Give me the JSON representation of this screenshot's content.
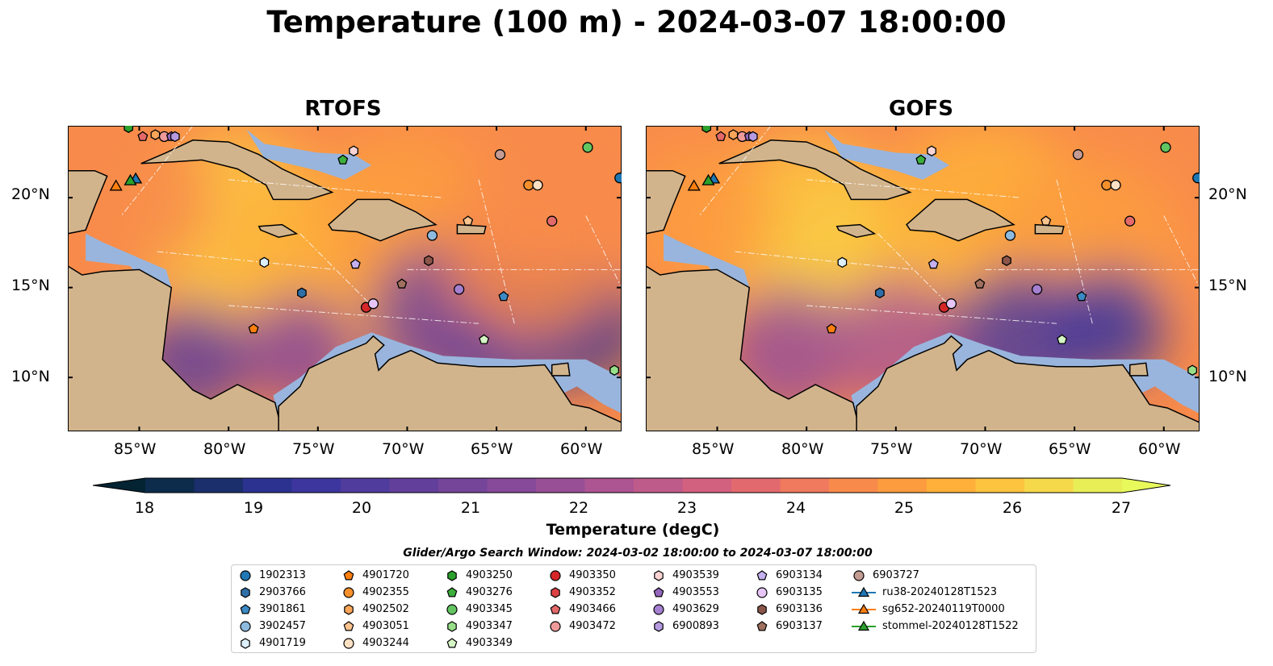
{
  "title": "Temperature (100 m) - 2024-03-07 18:00:00",
  "panels": [
    {
      "title": "RTOFS",
      "model": "rtofs"
    },
    {
      "title": "GOFS",
      "model": "gofs"
    }
  ],
  "axes": {
    "lon_ticks": [
      "85°W",
      "80°W",
      "75°W",
      "70°W",
      "65°W",
      "60°W"
    ],
    "lat_ticks": [
      "20°N",
      "15°N",
      "10°N"
    ],
    "lon_range": [
      -89,
      -58
    ],
    "lat_range": [
      7,
      24
    ]
  },
  "colorbar": {
    "label": "Temperature (degC)",
    "ticks": [
      "18",
      "19",
      "20",
      "21",
      "22",
      "23",
      "24",
      "25",
      "26",
      "27"
    ],
    "range": [
      18,
      27
    ],
    "extend": "both",
    "colormap": "thermal",
    "colors": [
      "#042333",
      "#0d2b4b",
      "#1a2f6b",
      "#2c3290",
      "#3d369e",
      "#503c9c",
      "#623f9a",
      "#744599",
      "#87499a",
      "#994f96",
      "#ad5492",
      "#bf5b8a",
      "#d2617f",
      "#e26a6f",
      "#ef7a5d",
      "#f88b4b",
      "#fd9c3e",
      "#feb03a",
      "#fdc43f",
      "#f6d94a",
      "#e8ee56",
      "#e8fa5b"
    ]
  },
  "map_colors": {
    "land": "#d2b48c",
    "shallow": "#99b5dd",
    "deep": "#042333"
  },
  "search_window": "Glider/Argo Search Window: 2024-03-02 18:00:00 to 2024-03-07 18:00:00",
  "legend": {
    "columns": [
      [
        {
          "label": "1902313",
          "marker": "circle",
          "color": "#1f77b4"
        },
        {
          "label": "2903766",
          "marker": "hexagon",
          "color": "#2f6fa8"
        },
        {
          "label": "3901861",
          "marker": "pentagon",
          "color": "#3b8ac4"
        },
        {
          "label": "3902457",
          "marker": "circle",
          "color": "#8dbbe0"
        },
        {
          "label": "4901719",
          "marker": "hexagon",
          "color": "#dceffb"
        }
      ],
      [
        {
          "label": "4901720",
          "marker": "pentagon",
          "color": "#ff7f0e"
        },
        {
          "label": "4902355",
          "marker": "circle",
          "color": "#f5902c"
        },
        {
          "label": "4902502",
          "marker": "hexagon",
          "color": "#f9a55a"
        },
        {
          "label": "4903051",
          "marker": "pentagon",
          "color": "#fbc38d"
        },
        {
          "label": "4903244",
          "marker": "circle",
          "color": "#fde0c3"
        }
      ],
      [
        {
          "label": "4903250",
          "marker": "hexagon",
          "color": "#2ca02c"
        },
        {
          "label": "4903276",
          "marker": "pentagon",
          "color": "#3cae3c"
        },
        {
          "label": "4903345",
          "marker": "circle",
          "color": "#62c562"
        },
        {
          "label": "4903347",
          "marker": "hexagon",
          "color": "#98df8a"
        },
        {
          "label": "4903349",
          "marker": "pentagon",
          "color": "#d5f5c5"
        }
      ],
      [
        {
          "label": "4903350",
          "marker": "circle",
          "color": "#d62728"
        },
        {
          "label": "4903352",
          "marker": "hexagon",
          "color": "#dc4243"
        },
        {
          "label": "4903466",
          "marker": "pentagon",
          "color": "#e46a6a"
        },
        {
          "label": "4903472",
          "marker": "circle",
          "color": "#ef9a9a"
        },
        {
          "label": "",
          "marker": "",
          "color": ""
        }
      ],
      [
        {
          "label": "4903539",
          "marker": "hexagon",
          "color": "#fad4d4"
        },
        {
          "label": "4903553",
          "marker": "pentagon",
          "color": "#9467bd"
        },
        {
          "label": "4903629",
          "marker": "circle",
          "color": "#a57fd0"
        },
        {
          "label": "6900893",
          "marker": "hexagon",
          "color": "#b69ae0"
        },
        {
          "label": "",
          "marker": "",
          "color": ""
        }
      ],
      [
        {
          "label": "6903134",
          "marker": "pentagon",
          "color": "#c5b0f0"
        },
        {
          "label": "6903135",
          "marker": "circle",
          "color": "#e7c6f7"
        },
        {
          "label": "6903136",
          "marker": "hexagon",
          "color": "#8c564b"
        },
        {
          "label": "6903137",
          "marker": "pentagon",
          "color": "#a0705f"
        },
        {
          "label": "",
          "marker": "",
          "color": ""
        }
      ],
      [
        {
          "label": "6903727",
          "marker": "circle",
          "color": "#c49c94"
        },
        {
          "label": "ru38-20240128T1523",
          "marker": "triangle-line",
          "color": "#1f77b4"
        },
        {
          "label": "sg652-20240119T0000",
          "marker": "triangle-line",
          "color": "#ff7f0e"
        },
        {
          "label": "stommel-20240128T1522",
          "marker": "triangle-line",
          "color": "#2ca02c"
        },
        {
          "label": "",
          "marker": "",
          "color": ""
        }
      ]
    ]
  },
  "floats": [
    {
      "id": "1902313",
      "marker": "circle",
      "color": "#1f77b4",
      "lon": -58.1,
      "lat": 21.1
    },
    {
      "id": "2903766",
      "marker": "hexagon",
      "color": "#2f6fa8",
      "lon": -75.9,
      "lat": 14.7
    },
    {
      "id": "3901861",
      "marker": "pentagon",
      "color": "#3b8ac4",
      "lon": -64.6,
      "lat": 14.5
    },
    {
      "id": "3902457",
      "marker": "circle",
      "color": "#8dbbe0",
      "lon": -68.6,
      "lat": 17.9
    },
    {
      "id": "4901719",
      "marker": "hexagon",
      "color": "#dceffb",
      "lon": -78.0,
      "lat": 16.4
    },
    {
      "id": "4901720",
      "marker": "pentagon",
      "color": "#ff7f0e",
      "lon": -78.6,
      "lat": 12.7
    },
    {
      "id": "4902355",
      "marker": "circle",
      "color": "#f5902c",
      "lon": -63.2,
      "lat": 20.7
    },
    {
      "id": "4902502",
      "marker": "hexagon",
      "color": "#f9a55a",
      "lon": -84.1,
      "lat": 23.5
    },
    {
      "id": "4903051",
      "marker": "pentagon",
      "color": "#fbc38d",
      "lon": -66.6,
      "lat": 18.7
    },
    {
      "id": "4903244",
      "marker": "circle",
      "color": "#fde0c3",
      "lon": -62.7,
      "lat": 20.7
    },
    {
      "id": "4903250",
      "marker": "hexagon",
      "color": "#2ca02c",
      "lon": -85.6,
      "lat": 23.9
    },
    {
      "id": "4903276",
      "marker": "pentagon",
      "color": "#3cae3c",
      "lon": -73.6,
      "lat": 22.1
    },
    {
      "id": "4903345",
      "marker": "circle",
      "color": "#62c562",
      "lon": -59.9,
      "lat": 22.8
    },
    {
      "id": "4903347",
      "marker": "hexagon",
      "color": "#98df8a",
      "lon": -58.4,
      "lat": 10.4
    },
    {
      "id": "4903349",
      "marker": "pentagon",
      "color": "#d5f5c5",
      "lon": -65.7,
      "lat": 12.1
    },
    {
      "id": "4903350",
      "marker": "circle",
      "color": "#d62728",
      "lon": -72.3,
      "lat": 13.9
    },
    {
      "id": "4903466",
      "marker": "pentagon",
      "color": "#e46a6a",
      "lon": -84.8,
      "lat": 23.4
    },
    {
      "id": "4903472",
      "marker": "circle",
      "color": "#ef9a9a",
      "lon": -83.6,
      "lat": 23.4
    },
    {
      "id": "4903539",
      "marker": "hexagon",
      "color": "#fad4d4",
      "lon": -73.0,
      "lat": 22.6
    },
    {
      "id": "4903553",
      "marker": "pentagon",
      "color": "#9467bd",
      "lon": -83.2,
      "lat": 23.4
    },
    {
      "id": "4903629",
      "marker": "circle",
      "color": "#a57fd0",
      "lon": -67.1,
      "lat": 14.9
    },
    {
      "id": "6900893",
      "marker": "hexagon",
      "color": "#b69ae0",
      "lon": -83.0,
      "lat": 23.4
    },
    {
      "id": "6903134",
      "marker": "pentagon",
      "color": "#c5b0f0",
      "lon": -72.9,
      "lat": 16.3
    },
    {
      "id": "6903135",
      "marker": "circle",
      "color": "#e7c6f7",
      "lon": -71.9,
      "lat": 14.1
    },
    {
      "id": "6903136",
      "marker": "hexagon",
      "color": "#8c564b",
      "lon": -68.8,
      "lat": 16.5
    },
    {
      "id": "6903137",
      "marker": "pentagon",
      "color": "#a0705f",
      "lon": -70.3,
      "lat": 15.2
    },
    {
      "id": "6903727",
      "marker": "circle",
      "color": "#c49c94",
      "lon": -64.8,
      "lat": 22.4
    },
    {
      "id": "6903727b",
      "marker": "circle",
      "color": "#e46a6a",
      "lon": -61.9,
      "lat": 18.7
    }
  ],
  "gliders": [
    {
      "id": "ru38-20240128T1523",
      "color": "#1f77b4",
      "lon": -85.2,
      "lat": 21.0
    },
    {
      "id": "sg652-20240119T0000",
      "color": "#ff7f0e",
      "lon": -86.3,
      "lat": 20.6
    },
    {
      "id": "stommel-20240128T1522",
      "color": "#2ca02c",
      "lon": -85.5,
      "lat": 20.9
    }
  ]
}
